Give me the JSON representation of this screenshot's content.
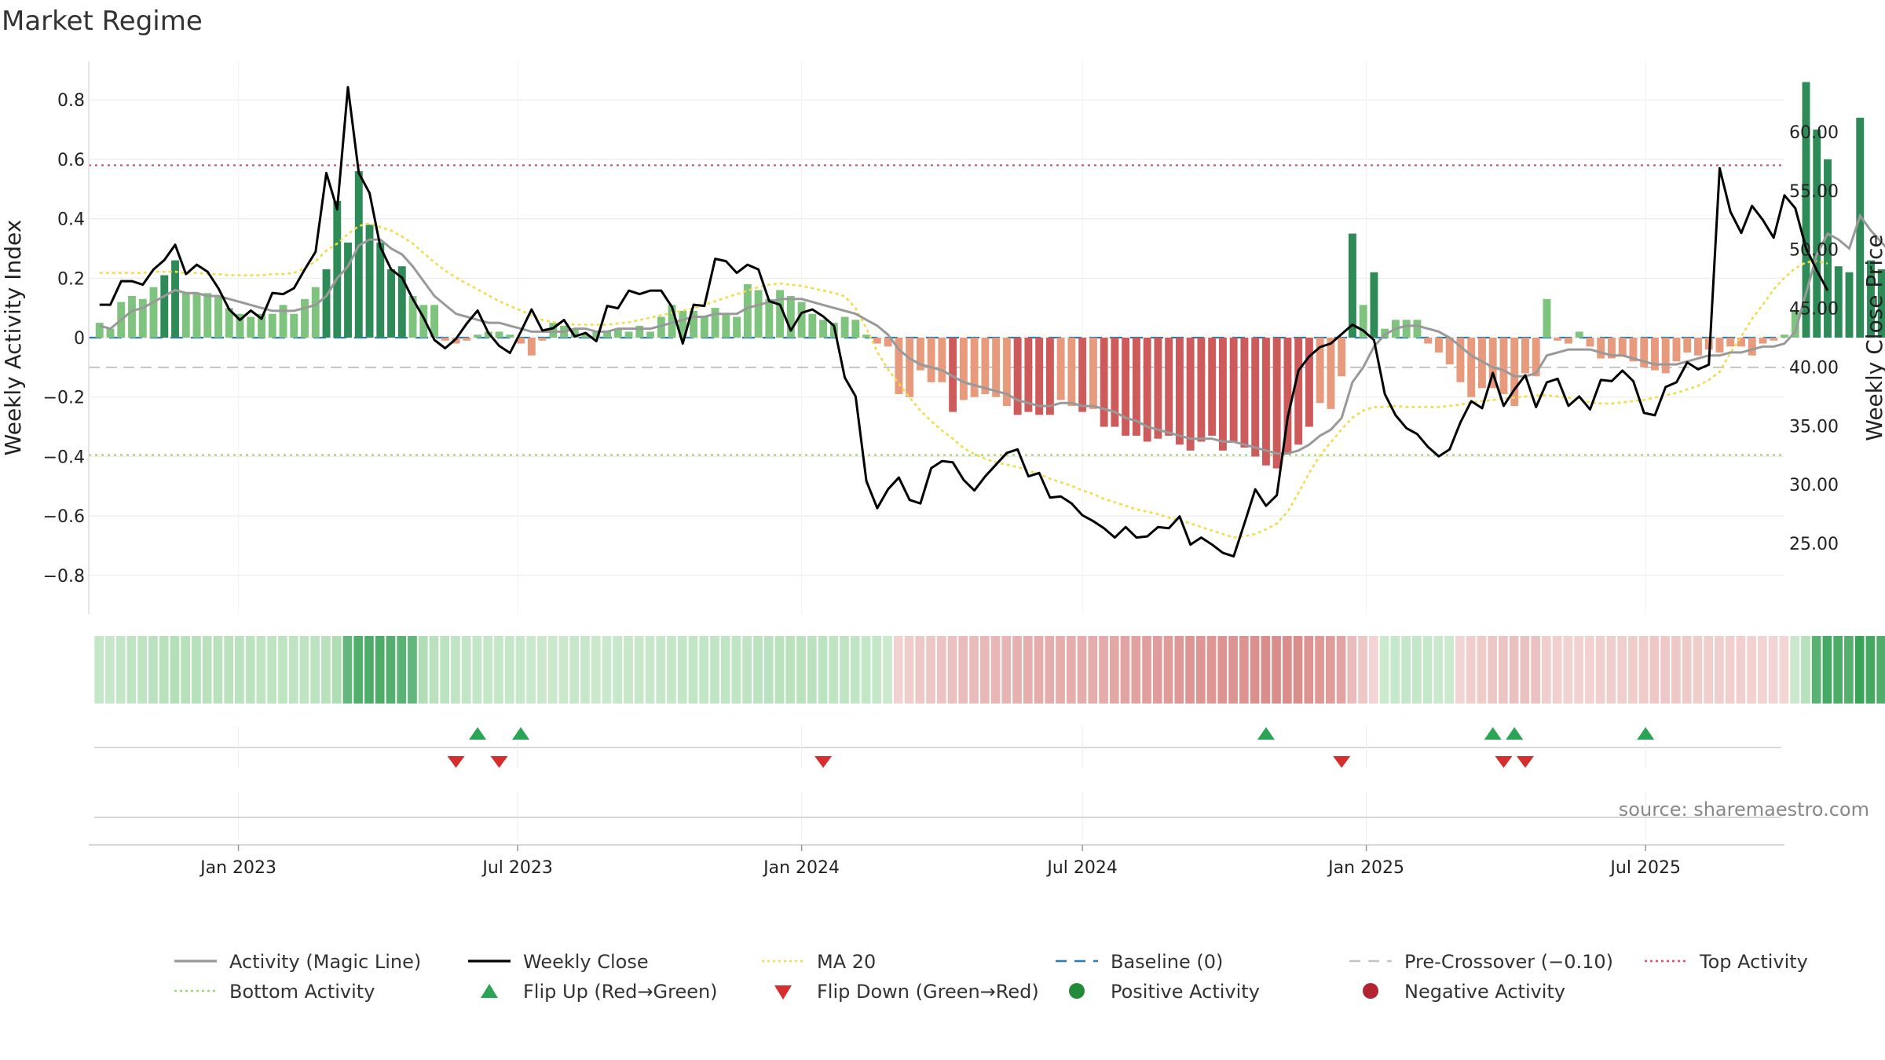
{
  "chart_data": {
    "type": "bar",
    "title": "Market Regime",
    "ylabel": "Weekly Activity Index",
    "y2label": "Weekly Close Price",
    "ylim": [
      -0.93,
      0.93
    ],
    "y2lim": [
      19.0,
      66.0
    ],
    "x_range": [
      "2022-09-26",
      "2025-09-29"
    ],
    "yticks": [
      -0.8,
      -0.6,
      -0.4,
      -0.2,
      0,
      0.2,
      0.4,
      0.6,
      0.8
    ],
    "ytick_labels": [
      "−0.8",
      "−0.6",
      "−0.4",
      "−0.2",
      "0",
      "0.2",
      "0.4",
      "0.6",
      "0.8"
    ],
    "y2ticks": [
      25,
      30,
      35,
      40,
      45,
      50,
      55,
      60
    ],
    "y2tick_labels": [
      "25.00",
      "30.00",
      "35.00",
      "40.00",
      "45.00",
      "50.00",
      "55.00",
      "60.00"
    ],
    "xticks": [
      {
        "date": "2023-01-01",
        "label": "Jan 2023"
      },
      {
        "date": "2023-07-01",
        "label": "Jul 2023"
      },
      {
        "date": "2024-01-01",
        "label": "Jan 2024"
      },
      {
        "date": "2024-07-01",
        "label": "Jul 2024"
      },
      {
        "date": "2025-01-01",
        "label": "Jan 2025"
      },
      {
        "date": "2025-07-01",
        "label": "Jul 2025"
      }
    ],
    "levels": {
      "baseline": 0,
      "pre_crossover": -0.1,
      "top": 0.58,
      "bottom": -0.395
    },
    "start_date": "2022-10-03",
    "activity_bars": [
      0.05,
      0.03,
      0.12,
      0.14,
      0.13,
      0.17,
      0.21,
      0.26,
      0.15,
      0.15,
      0.15,
      0.14,
      0.1,
      0.08,
      0.07,
      0.08,
      0.08,
      0.11,
      0.08,
      0.13,
      0.17,
      0.23,
      0.46,
      0.32,
      0.56,
      0.38,
      0.32,
      0.23,
      0.24,
      0.14,
      0.11,
      0.11,
      -0.01,
      -0.02,
      -0.01,
      0.01,
      0.02,
      0.02,
      0.01,
      -0.02,
      -0.06,
      -0.01,
      0.05,
      0.04,
      0.03,
      0.01,
      0.02,
      0.02,
      0.03,
      0.02,
      0.04,
      0.02,
      0.07,
      0.11,
      0.09,
      0.09,
      0.07,
      0.1,
      0.08,
      0.07,
      0.18,
      0.16,
      0.13,
      0.16,
      0.14,
      0.12,
      0.08,
      0.06,
      0.05,
      0.07,
      0.06,
      0.01,
      -0.02,
      -0.03,
      -0.19,
      -0.2,
      -0.11,
      -0.15,
      -0.15,
      -0.25,
      -0.21,
      -0.2,
      -0.19,
      -0.2,
      -0.23,
      -0.26,
      -0.25,
      -0.26,
      -0.26,
      -0.21,
      -0.23,
      -0.25,
      -0.24,
      -0.3,
      -0.3,
      -0.33,
      -0.33,
      -0.35,
      -0.34,
      -0.33,
      -0.36,
      -0.38,
      -0.35,
      -0.33,
      -0.38,
      -0.35,
      -0.37,
      -0.4,
      -0.43,
      -0.44,
      -0.39,
      -0.36,
      -0.3,
      -0.22,
      -0.24,
      -0.13,
      0.35,
      0.11,
      0.22,
      0.03,
      0.06,
      0.06,
      0.06,
      -0.02,
      -0.05,
      -0.09,
      -0.15,
      -0.2,
      -0.17,
      -0.17,
      -0.19,
      -0.23,
      -0.12,
      -0.13,
      0.13,
      -0.01,
      -0.02,
      0.02,
      -0.03,
      -0.07,
      -0.07,
      -0.06,
      -0.08,
      -0.1,
      -0.11,
      -0.12,
      -0.08,
      -0.05,
      -0.06,
      -0.04,
      -0.05,
      -0.03,
      -0.03,
      -0.06,
      -0.02,
      -0.01,
      0.01,
      0.09,
      0.86,
      0.7,
      0.6,
      0.24,
      0.22,
      0.74,
      0.26,
      0.23,
      0.1,
      0.06
    ],
    "weekly_close": [
      45.3,
      45.3,
      47.3,
      47.3,
      47.0,
      48.3,
      49.1,
      50.4,
      47.9,
      48.7,
      48.1,
      46.7,
      44.9,
      44.0,
      44.8,
      44.1,
      46.3,
      46.2,
      46.7,
      48.3,
      49.8,
      56.5,
      53.4,
      63.8,
      56.5,
      54.8,
      50.2,
      48.3,
      47.6,
      45.8,
      44.2,
      42.3,
      41.6,
      42.4,
      43.7,
      44.8,
      42.9,
      41.8,
      41.2,
      43.0,
      44.9,
      43.1,
      43.3,
      44.0,
      42.6,
      42.9,
      42.2,
      45.2,
      45.0,
      46.5,
      46.2,
      46.5,
      46.5,
      45.1,
      42.0,
      45.3,
      45.2,
      49.2,
      49.0,
      48.0,
      48.7,
      48.3,
      45.6,
      45.3,
      43.1,
      44.6,
      44.9,
      44.3,
      43.5,
      39.1,
      37.5,
      30.3,
      28.0,
      29.6,
      30.6,
      28.7,
      28.4,
      31.4,
      32.0,
      31.9,
      30.4,
      29.5,
      30.7,
      31.7,
      32.7,
      33.0,
      30.7,
      31.0,
      28.9,
      29.0,
      28.4,
      27.4,
      26.9,
      26.3,
      25.5,
      26.4,
      25.5,
      25.6,
      26.4,
      26.3,
      27.3,
      24.9,
      25.5,
      24.9,
      24.2,
      23.9,
      26.7,
      29.6,
      28.2,
      29.1,
      35.7,
      39.7,
      40.9,
      41.7,
      42.0,
      42.8,
      43.6,
      43.1,
      42.3,
      37.7,
      35.9,
      34.8,
      34.3,
      33.2,
      32.4,
      33.0,
      35.3,
      37.1,
      36.5,
      39.5,
      36.7,
      38.1,
      39.3,
      36.6,
      38.7,
      39.0,
      36.7,
      37.5,
      36.4,
      38.9,
      38.8,
      39.7,
      38.8,
      36.1,
      35.9,
      38.3,
      38.7,
      40.4,
      39.8,
      40.2,
      56.9,
      53.2,
      51.4,
      53.7,
      52.5,
      51.0,
      54.6,
      53.5,
      50.1,
      48.2,
      46.5
    ],
    "ma20": [
      48.0,
      48.0,
      48.0,
      48.0,
      48.0,
      48.1,
      48.1,
      48.1,
      48.0,
      48.0,
      47.9,
      47.9,
      47.8,
      47.8,
      47.8,
      47.8,
      47.9,
      47.9,
      48.0,
      48.4,
      49.0,
      49.9,
      50.5,
      51.3,
      52.0,
      52.2,
      51.9,
      51.6,
      51.1,
      50.5,
      49.7,
      48.9,
      48.2,
      47.6,
      47.1,
      46.6,
      46.1,
      45.6,
      45.2,
      44.8,
      44.4,
      44.0,
      43.8,
      43.7,
      43.6,
      43.6,
      43.6,
      43.6,
      43.7,
      43.8,
      44.0,
      44.2,
      44.4,
      44.6,
      44.8,
      45.0,
      45.3,
      45.6,
      45.9,
      46.2,
      46.5,
      46.8,
      47.0,
      47.1,
      47.0,
      46.9,
      46.7,
      46.5,
      46.3,
      46.0,
      45.0,
      43.3,
      41.3,
      39.8,
      38.6,
      37.4,
      36.3,
      35.4,
      34.6,
      33.9,
      33.1,
      32.6,
      32.2,
      31.9,
      31.7,
      31.5,
      31.2,
      30.9,
      30.5,
      30.2,
      29.9,
      29.5,
      29.2,
      28.8,
      28.5,
      28.2,
      27.9,
      27.7,
      27.5,
      27.2,
      27.0,
      26.7,
      26.4,
      26.1,
      25.8,
      25.5,
      25.6,
      25.8,
      26.2,
      26.7,
      27.7,
      29.3,
      31.0,
      32.5,
      33.6,
      34.7,
      35.7,
      36.3,
      36.6,
      36.6,
      36.7,
      36.6,
      36.6,
      36.6,
      36.6,
      36.7,
      36.8,
      37.0,
      37.1,
      37.2,
      37.3,
      37.4,
      37.5,
      37.6,
      37.6,
      37.5,
      37.4,
      37.2,
      37.0,
      36.9,
      36.9,
      37.0,
      37.1,
      37.2,
      37.4,
      37.6,
      37.8,
      38.1,
      38.4,
      38.9,
      39.6,
      41.2,
      42.6,
      44.1,
      45.3,
      46.6,
      47.6,
      48.4,
      48.9,
      49.0,
      48.8
    ],
    "magic_line": [
      0.04,
      0.03,
      0.06,
      0.09,
      0.1,
      0.12,
      0.14,
      0.16,
      0.15,
      0.15,
      0.14,
      0.14,
      0.13,
      0.12,
      0.11,
      0.1,
      0.09,
      0.09,
      0.09,
      0.1,
      0.11,
      0.14,
      0.2,
      0.24,
      0.31,
      0.33,
      0.33,
      0.3,
      0.28,
      0.24,
      0.19,
      0.14,
      0.11,
      0.08,
      0.07,
      0.06,
      0.05,
      0.05,
      0.04,
      0.03,
      0.02,
      0.02,
      0.02,
      0.02,
      0.03,
      0.03,
      0.02,
      0.02,
      0.03,
      0.03,
      0.03,
      0.03,
      0.04,
      0.05,
      0.06,
      0.07,
      0.07,
      0.08,
      0.08,
      0.08,
      0.1,
      0.11,
      0.12,
      0.13,
      0.13,
      0.13,
      0.12,
      0.11,
      0.1,
      0.09,
      0.08,
      0.06,
      0.04,
      0.01,
      -0.04,
      -0.07,
      -0.09,
      -0.1,
      -0.11,
      -0.13,
      -0.15,
      -0.16,
      -0.17,
      -0.18,
      -0.19,
      -0.21,
      -0.22,
      -0.23,
      -0.23,
      -0.22,
      -0.22,
      -0.23,
      -0.23,
      -0.24,
      -0.25,
      -0.27,
      -0.28,
      -0.3,
      -0.31,
      -0.32,
      -0.33,
      -0.34,
      -0.34,
      -0.34,
      -0.35,
      -0.35,
      -0.36,
      -0.37,
      -0.38,
      -0.39,
      -0.39,
      -0.38,
      -0.36,
      -0.33,
      -0.31,
      -0.27,
      -0.15,
      -0.1,
      -0.03,
      0.01,
      0.03,
      0.04,
      0.04,
      0.03,
      0.02,
      0.0,
      -0.03,
      -0.06,
      -0.08,
      -0.1,
      -0.11,
      -0.13,
      -0.13,
      -0.12,
      -0.06,
      -0.05,
      -0.04,
      -0.04,
      -0.04,
      -0.05,
      -0.06,
      -0.06,
      -0.07,
      -0.08,
      -0.09,
      -0.09,
      -0.09,
      -0.08,
      -0.07,
      -0.06,
      -0.06,
      -0.05,
      -0.05,
      -0.04,
      -0.03,
      -0.03,
      -0.02,
      0.02,
      0.15,
      0.28,
      0.35,
      0.33,
      0.3,
      0.41,
      0.36,
      0.32,
      0.28,
      0.24
    ],
    "flip_up": [
      "2023-06-05",
      "2023-07-03",
      "2024-10-28",
      "2025-03-24",
      "2025-04-07",
      "2025-07-01"
    ],
    "flip_down": [
      "2023-05-22",
      "2023-06-19",
      "2024-01-15",
      "2024-12-16",
      "2025-03-31",
      "2025-04-14"
    ],
    "legend_position": "bottom",
    "legend": [
      {
        "label": "Activity (Magic Line)",
        "style": "line",
        "color": "#999999"
      },
      {
        "label": "Weekly Close",
        "style": "line",
        "color": "#000000"
      },
      {
        "label": "MA 20",
        "style": "dotted",
        "color": "#f2dc4b"
      },
      {
        "label": "Baseline (0)",
        "style": "dashed",
        "color": "#2b79b6"
      },
      {
        "label": "Pre-Crossover (−0.10)",
        "style": "dashed",
        "color": "#c4c4c4"
      },
      {
        "label": "Top Activity",
        "style": "dotted",
        "color": "#e04f63"
      },
      {
        "label": "Bottom Activity",
        "style": "dotted",
        "color": "#9fd76f"
      },
      {
        "label": "Flip Up (Red→Green)",
        "style": "tri-up",
        "color": "#2ca456"
      },
      {
        "label": "Flip Down (Green→Red)",
        "style": "tri-down",
        "color": "#d62e2e"
      },
      {
        "label": "Positive Activity",
        "style": "dot",
        "color": "#228b3a"
      },
      {
        "label": "Negative Activity",
        "style": "dot",
        "color": "#b22530"
      }
    ],
    "source": "source: sharemaestro.com"
  },
  "colors": {
    "pos_strong": "#2e8b57",
    "pos_light": "#7fc47e",
    "neg_strong": "#cd5b5b",
    "neg_light": "#e89a7c",
    "grid": "#ececec"
  }
}
